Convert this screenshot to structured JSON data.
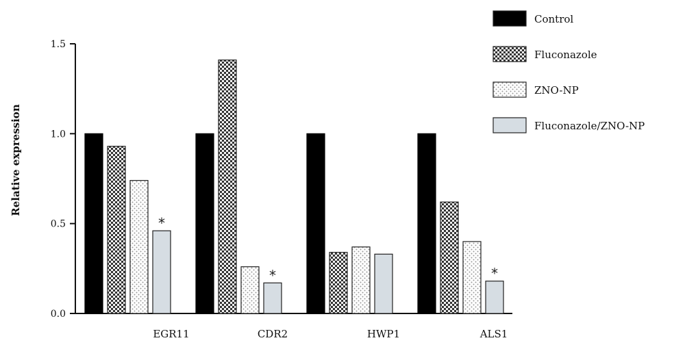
{
  "chart_data": {
    "type": "bar",
    "title": "",
    "xlabel": "",
    "ylabel": "Relative expression",
    "ylim": [
      0,
      1.5
    ],
    "yticks": [
      "0.0",
      "0.5",
      "1.0",
      "1.5"
    ],
    "grid": false,
    "legend_position": "top-right",
    "categories": [
      "EGR11",
      "CDR2",
      "HWP1",
      "ALS1"
    ],
    "series": [
      {
        "name": "Control",
        "values": [
          1.0,
          1.0,
          1.0,
          1.0
        ],
        "pattern": "solid",
        "color": "#000000"
      },
      {
        "name": "Fluconazole",
        "values": [
          0.93,
          1.41,
          0.34,
          0.62
        ],
        "pattern": "checker",
        "color": "#555555"
      },
      {
        "name": "ZNO-NP",
        "values": [
          0.74,
          0.26,
          0.37,
          0.4
        ],
        "pattern": "dots",
        "color": "#bdbdbd"
      },
      {
        "name": "Fluconazole/ZNO-NP",
        "values": [
          0.46,
          0.17,
          0.33,
          0.18
        ],
        "pattern": "light",
        "color": "#d6dde3"
      }
    ],
    "annotations": [
      {
        "category": "EGR11",
        "series": "Fluconazole/ZNO-NP",
        "text": "*"
      },
      {
        "category": "CDR2",
        "series": "Fluconazole/ZNO-NP",
        "text": "*"
      },
      {
        "category": "ALS1",
        "series": "Fluconazole/ZNO-NP",
        "text": "*"
      }
    ]
  }
}
